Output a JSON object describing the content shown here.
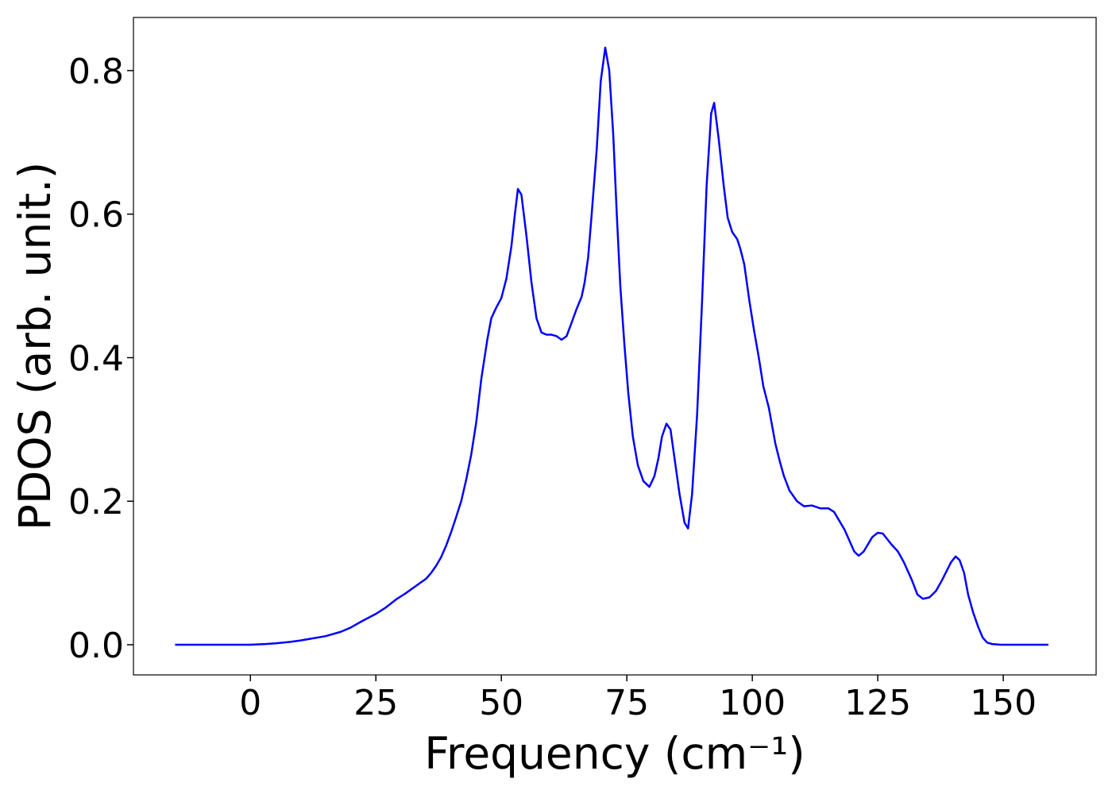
{
  "chart_data": {
    "type": "line",
    "xlabel": "Frequency (cm⁻¹)",
    "ylabel": "PDOS (arb. unit.)",
    "x": [
      -15,
      0,
      3,
      5,
      8,
      10,
      15,
      18,
      20,
      22,
      25,
      27,
      29,
      31,
      33,
      35,
      36,
      37,
      38,
      39,
      40,
      41,
      42,
      43,
      44,
      45,
      46,
      47.2,
      48,
      49,
      50,
      51,
      52,
      52.7,
      53.3,
      54,
      55,
      56,
      57,
      58,
      59,
      60,
      61,
      62,
      63,
      63.8,
      65,
      66,
      66.6,
      67.3,
      68,
      69,
      69.8,
      70.7,
      71.5,
      72.3,
      73,
      73.7,
      74.5,
      75.3,
      76.2,
      77.2,
      78.3,
      79.5,
      80.5,
      81.3,
      82,
      82.9,
      83.7,
      84.5,
      85.5,
      86.5,
      87.2,
      88,
      89,
      90,
      90.9,
      91.8,
      92.4,
      93.3,
      94.3,
      95.1,
      96,
      97,
      97.6,
      98.4,
      99.4,
      100.3,
      101.3,
      102.2,
      103.3,
      104.6,
      105.5,
      106.3,
      107.4,
      108.9,
      110.3,
      111.9,
      113.6,
      115.2,
      116.3,
      117.4,
      118.4,
      120.3,
      121.2,
      122.2,
      123.9,
      125,
      126,
      127.7,
      129,
      130.2,
      131.8,
      132.9,
      134,
      135.3,
      136.6,
      137.8,
      139.6,
      140.5,
      141.3,
      142.2,
      143,
      144,
      145,
      145.9,
      146.8,
      147.8,
      149.5,
      159
    ],
    "series": [
      {
        "color": "#0000ff",
        "values": [
          0,
          0,
          0.001,
          0.002,
          0.004,
          0.006,
          0.012,
          0.018,
          0.024,
          0.032,
          0.043,
          0.052,
          0.063,
          0.072,
          0.082,
          0.092,
          0.1,
          0.11,
          0.122,
          0.138,
          0.157,
          0.178,
          0.2,
          0.23,
          0.265,
          0.31,
          0.37,
          0.425,
          0.455,
          0.47,
          0.483,
          0.51,
          0.555,
          0.6,
          0.635,
          0.627,
          0.57,
          0.505,
          0.455,
          0.435,
          0.432,
          0.432,
          0.43,
          0.425,
          0.43,
          0.445,
          0.468,
          0.485,
          0.505,
          0.54,
          0.6,
          0.69,
          0.785,
          0.832,
          0.8,
          0.71,
          0.6,
          0.5,
          0.42,
          0.35,
          0.29,
          0.25,
          0.228,
          0.22,
          0.235,
          0.26,
          0.29,
          0.308,
          0.3,
          0.26,
          0.21,
          0.17,
          0.162,
          0.21,
          0.32,
          0.48,
          0.64,
          0.74,
          0.755,
          0.705,
          0.64,
          0.595,
          0.575,
          0.565,
          0.552,
          0.53,
          0.48,
          0.44,
          0.4,
          0.36,
          0.33,
          0.28,
          0.255,
          0.235,
          0.215,
          0.2,
          0.193,
          0.194,
          0.19,
          0.19,
          0.185,
          0.172,
          0.16,
          0.13,
          0.124,
          0.13,
          0.15,
          0.156,
          0.155,
          0.14,
          0.13,
          0.115,
          0.09,
          0.07,
          0.064,
          0.066,
          0.075,
          0.09,
          0.115,
          0.123,
          0.118,
          0.1,
          0.07,
          0.045,
          0.025,
          0.01,
          0.003,
          0.001,
          0,
          0
        ]
      }
    ],
    "xlim": [
      -23.3,
      168.5
    ],
    "xticks": [
      0,
      25,
      50,
      75,
      100,
      125,
      150
    ],
    "ylim": [
      -0.042,
      0.874
    ],
    "yticks": [
      {
        "value": 0,
        "label": "0.0"
      },
      0.2,
      0.4,
      0.6,
      0.8
    ]
  }
}
